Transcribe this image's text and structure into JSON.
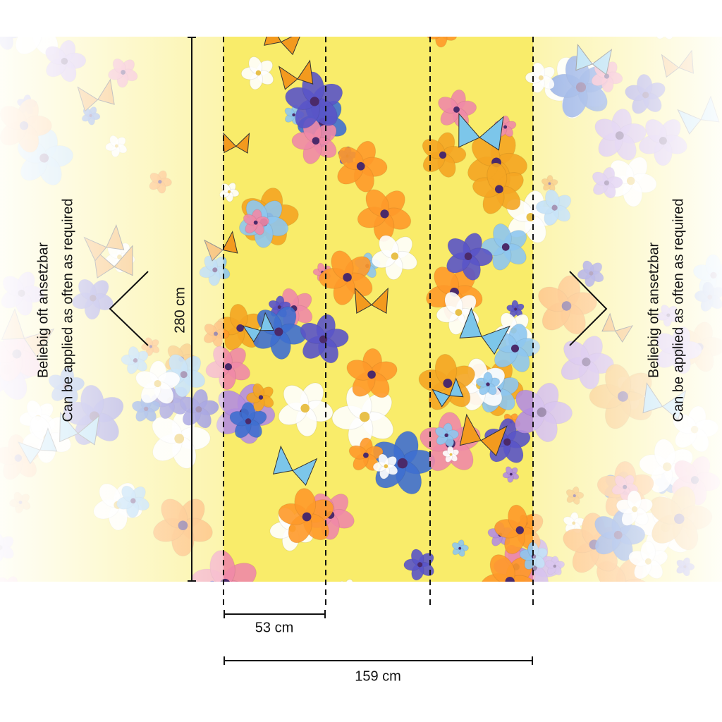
{
  "left_note": {
    "line1": "Beliebig oft ansetzbar",
    "line2": "Can be applied as often as required"
  },
  "right_note": {
    "line1": "Beliebig oft ansetzbar",
    "line2": "Can be applied as often as required"
  },
  "height_label": "280 cm",
  "panel_width_label": "53 cm",
  "total_width_label": "159 cm"
}
